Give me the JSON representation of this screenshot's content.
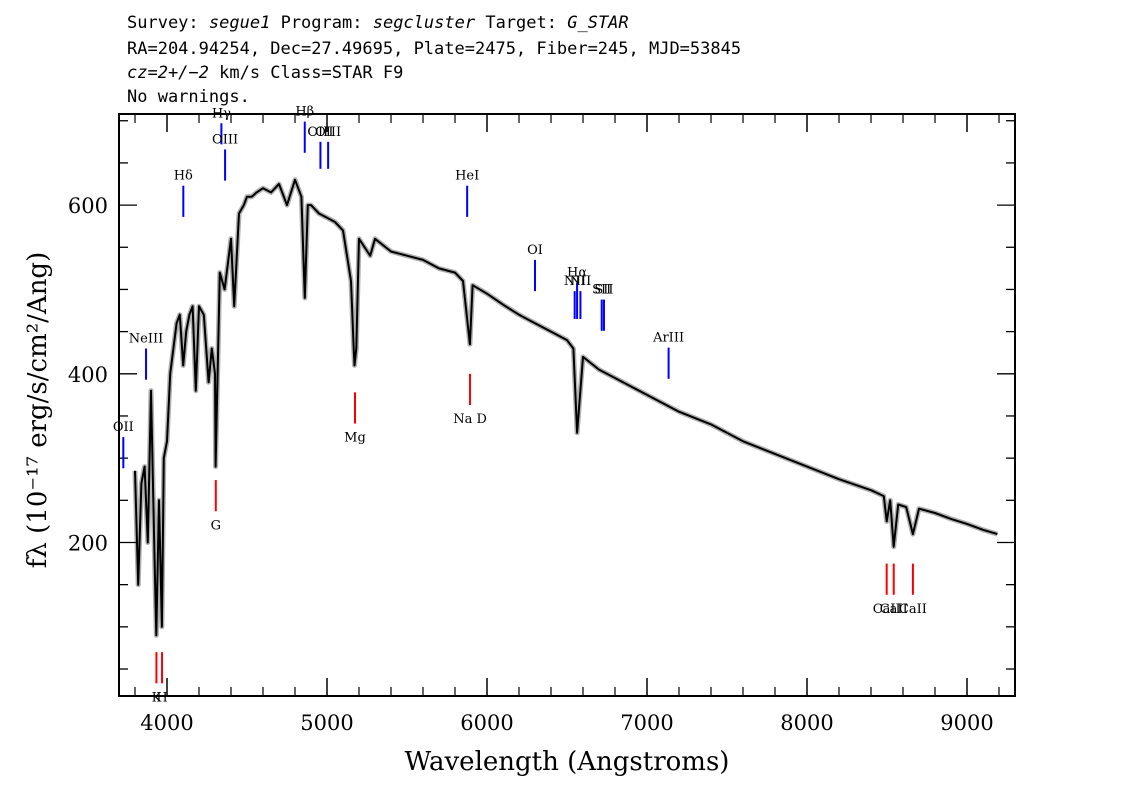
{
  "header": {
    "survey_label": "Survey:",
    "survey_value": "segue1",
    "program_label": "Program:",
    "program_value": "segcluster",
    "target_label": "Target:",
    "target_value": "G_STAR",
    "line2": "RA=204.94254, Dec=27.49695, Plate=2475, Fiber=245, MJD=53845",
    "line3_redshift": "cz=2+/−2",
    "line3_rest": " km/s Class=STAR F9",
    "line4": "No warnings."
  },
  "chart_data": {
    "type": "line",
    "xlabel": "Wavelength (Angstroms)",
    "ylabel": "fλ (10⁻¹⁷ erg/s/cm²/Ang)",
    "xlim": [
      3700,
      9300
    ],
    "ylim": [
      18,
      708
    ],
    "x_ticks": [
      4000,
      5000,
      6000,
      7000,
      8000,
      9000
    ],
    "y_ticks": [
      200,
      400,
      600
    ],
    "grid": false,
    "colors": {
      "spectrum": "#000000",
      "error": "#b0b0b0",
      "emission": "#0000ff",
      "absorption": "#ff0000"
    },
    "series": [
      {
        "x": [
          3800,
          3820,
          3840,
          3860,
          3880,
          3900,
          3920,
          3933,
          3950,
          3968,
          3980,
          4000,
          4020,
          4040,
          4060,
          4080,
          4101,
          4120,
          4140,
          4160,
          4180,
          4200,
          4230,
          4260,
          4280,
          4300,
          4304,
          4330,
          4360,
          4400,
          4420,
          4450,
          4480,
          4500,
          4530,
          4560,
          4600,
          4650,
          4700,
          4750,
          4800,
          4840,
          4861,
          4880,
          4900,
          4950,
          5000,
          5050,
          5100,
          5150,
          5167,
          5172,
          5183,
          5200,
          5270,
          5300,
          5400,
          5500,
          5600,
          5700,
          5800,
          5850,
          5893,
          5910,
          6000,
          6100,
          6200,
          6300,
          6400,
          6500,
          6540,
          6563,
          6600,
          6700,
          6800,
          7000,
          7200,
          7400,
          7600,
          7800,
          8000,
          8200,
          8400,
          8480,
          8498,
          8520,
          8542,
          8570,
          8620,
          8662,
          8700,
          8800,
          8900,
          9000,
          9100,
          9190
        ],
        "values": [
          285,
          150,
          270,
          290,
          200,
          380,
          200,
          90,
          250,
          100,
          300,
          320,
          400,
          430,
          460,
          470,
          410,
          450,
          470,
          480,
          380,
          480,
          470,
          390,
          430,
          400,
          290,
          520,
          500,
          560,
          480,
          590,
          600,
          610,
          610,
          615,
          620,
          615,
          625,
          600,
          630,
          610,
          490,
          600,
          600,
          590,
          585,
          580,
          570,
          510,
          430,
          410,
          430,
          560,
          540,
          560,
          545,
          540,
          535,
          525,
          520,
          510,
          435,
          505,
          495,
          482,
          470,
          460,
          450,
          440,
          430,
          330,
          420,
          405,
          395,
          375,
          355,
          340,
          320,
          305,
          290,
          275,
          262,
          255,
          225,
          250,
          195,
          245,
          242,
          210,
          240,
          235,
          228,
          222,
          215,
          210
        ]
      }
    ],
    "emission_lines": [
      {
        "label": "OII",
        "x": 3727,
        "ymin": 288,
        "ymax": 325
      },
      {
        "label": "NeIII",
        "x": 3869,
        "ymin": 393,
        "ymax": 430
      },
      {
        "label": "Hδ",
        "x": 4102,
        "ymin": 586,
        "ymax": 623
      },
      {
        "label": "Hγ",
        "x": 4340,
        "ymin": 672,
        "ymax": 697
      },
      {
        "label": "OIII",
        "x": 4363,
        "ymin": 629,
        "ymax": 666
      },
      {
        "label": "Hβ",
        "x": 4861,
        "ymin": 662,
        "ymax": 699
      },
      {
        "label": "OIII",
        "x": 4959,
        "ymin": 643,
        "ymax": 675
      },
      {
        "label": "OIII",
        "x": 5007,
        "ymin": 643,
        "ymax": 675
      },
      {
        "label": "HeI",
        "x": 5876,
        "ymin": 586,
        "ymax": 623
      },
      {
        "label": "OI",
        "x": 6300,
        "ymin": 498,
        "ymax": 535
      },
      {
        "label": "NII",
        "x": 6548,
        "ymin": 465,
        "ymax": 498
      },
      {
        "label": "Hα",
        "x": 6563,
        "ymin": 465,
        "ymax": 508
      },
      {
        "label": "NII",
        "x": 6584,
        "ymin": 465,
        "ymax": 498
      },
      {
        "label": "SII",
        "x": 6717,
        "ymin": 451,
        "ymax": 488
      },
      {
        "label": "SII",
        "x": 6731,
        "ymin": 451,
        "ymax": 488
      },
      {
        "label": "ArIII",
        "x": 7135,
        "ymin": 394,
        "ymax": 431
      }
    ],
    "absorption_lines": [
      {
        "label": "K",
        "x": 3934,
        "ymin": 33,
        "ymax": 70
      },
      {
        "label": "H",
        "x": 3969,
        "ymin": 33,
        "ymax": 70
      },
      {
        "label": "G",
        "x": 4305,
        "ymin": 237,
        "ymax": 274
      },
      {
        "label": "Mg",
        "x": 5175,
        "ymin": 341,
        "ymax": 378
      },
      {
        "label": "Na D",
        "x": 5894,
        "ymin": 363,
        "ymax": 400
      },
      {
        "label": "CaII",
        "x": 8498,
        "ymin": 138,
        "ymax": 175
      },
      {
        "label": "CaII",
        "x": 8542,
        "ymin": 138,
        "ymax": 175
      },
      {
        "label": "CaII",
        "x": 8662,
        "ymin": 138,
        "ymax": 175
      }
    ],
    "tick_labels_x": [
      "4000",
      "5000",
      "6000",
      "7000",
      "8000",
      "9000"
    ],
    "tick_labels_y": [
      "200",
      "400",
      "600"
    ]
  }
}
